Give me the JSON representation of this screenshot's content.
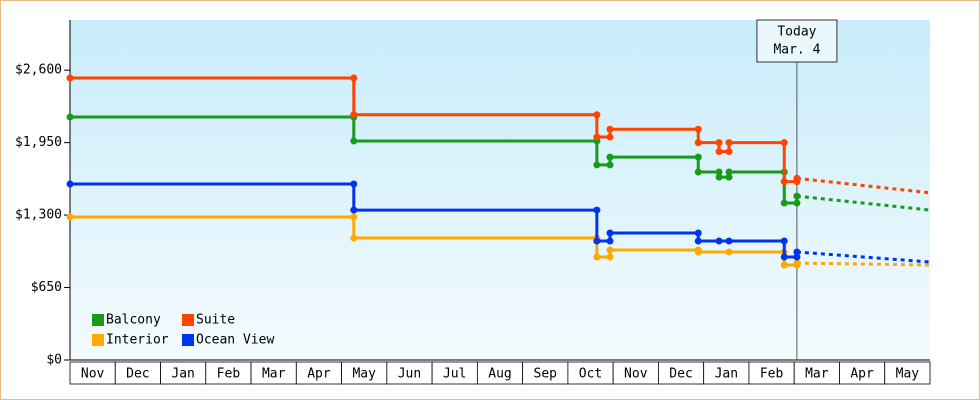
{
  "chart_data": {
    "type": "step-line",
    "xlim": [
      0,
      19
    ],
    "ylim": [
      0,
      3050
    ],
    "yticks": [
      {
        "value": 0,
        "label": "$0"
      },
      {
        "value": 650,
        "label": "$650"
      },
      {
        "value": 1300,
        "label": "$1,300"
      },
      {
        "value": 1950,
        "label": "$1,950"
      },
      {
        "value": 2600,
        "label": "$2,600"
      }
    ],
    "xticks": [
      {
        "value": 0.5,
        "label": "Nov"
      },
      {
        "value": 1.5,
        "label": "Dec"
      },
      {
        "value": 2.5,
        "label": "Jan"
      },
      {
        "value": 3.5,
        "label": "Feb"
      },
      {
        "value": 4.5,
        "label": "Mar"
      },
      {
        "value": 5.5,
        "label": "Apr"
      },
      {
        "value": 6.5,
        "label": "May"
      },
      {
        "value": 7.5,
        "label": "Jun"
      },
      {
        "value": 8.5,
        "label": "Jul"
      },
      {
        "value": 9.5,
        "label": "Aug"
      },
      {
        "value": 10.5,
        "label": "Sep"
      },
      {
        "value": 11.5,
        "label": "Oct"
      },
      {
        "value": 12.5,
        "label": "Nov"
      },
      {
        "value": 13.5,
        "label": "Dec"
      },
      {
        "value": 14.5,
        "label": "Jan"
      },
      {
        "value": 15.5,
        "label": "Feb"
      },
      {
        "value": 16.5,
        "label": "Mar"
      },
      {
        "value": 17.5,
        "label": "Apr"
      },
      {
        "value": 18.5,
        "label": "May"
      }
    ],
    "today": {
      "x": 16.06,
      "label": "Today",
      "date": "Mar. 4"
    },
    "series": [
      {
        "name": "Balcony",
        "color": "#1a9a1a",
        "x": [
          0,
          6.27,
          6.27,
          11.64,
          11.64,
          11.93,
          11.93,
          13.88,
          13.88,
          14.34,
          14.34,
          14.56,
          14.56,
          15.78,
          15.78,
          16.06,
          16.06
        ],
        "values": [
          2180,
          2180,
          1965,
          1965,
          1750,
          1750,
          1820,
          1820,
          1686,
          1686,
          1640,
          1640,
          1686,
          1686,
          1408,
          1408,
          1470
        ],
        "forecast": {
          "x": [
            16.06,
            19
          ],
          "values": [
            1470,
            1345
          ]
        }
      },
      {
        "name": "Suite",
        "color": "#ff4400",
        "x": [
          0,
          6.27,
          6.27,
          11.64,
          11.64,
          11.93,
          11.93,
          13.88,
          13.88,
          14.34,
          14.34,
          14.56,
          14.56,
          15.78,
          15.78,
          16.06,
          16.06
        ],
        "values": [
          2530,
          2530,
          2200,
          2200,
          2000,
          2000,
          2070,
          2070,
          1950,
          1950,
          1870,
          1870,
          1950,
          1950,
          1600,
          1600,
          1630
        ],
        "forecast": {
          "x": [
            16.06,
            19
          ],
          "values": [
            1630,
            1500
          ]
        }
      },
      {
        "name": "Interior",
        "color": "#ffaa00",
        "x": [
          0,
          6.27,
          6.27,
          11.64,
          11.64,
          11.93,
          11.93,
          13.88,
          13.88,
          14.56,
          15.78,
          15.78,
          16.06,
          16.06
        ],
        "values": [
          1283,
          1283,
          1094,
          1094,
          924,
          924,
          987,
          987,
          969,
          969,
          969,
          852,
          852,
          870
        ],
        "forecast": {
          "x": [
            16.06,
            19
          ],
          "values": [
            870,
            852
          ]
        }
      },
      {
        "name": "Ocean View",
        "color": "#0033ee",
        "x": [
          0,
          6.27,
          6.27,
          11.64,
          11.64,
          11.93,
          11.93,
          13.88,
          13.88,
          14.34,
          14.56,
          15.78,
          15.78,
          16.06,
          16.06
        ],
        "values": [
          1579,
          1579,
          1345,
          1345,
          1067,
          1067,
          1139,
          1139,
          1067,
          1067,
          1067,
          1067,
          924,
          924,
          969
        ],
        "forecast": {
          "x": [
            16.06,
            19
          ],
          "values": [
            969,
            879
          ]
        }
      }
    ]
  }
}
